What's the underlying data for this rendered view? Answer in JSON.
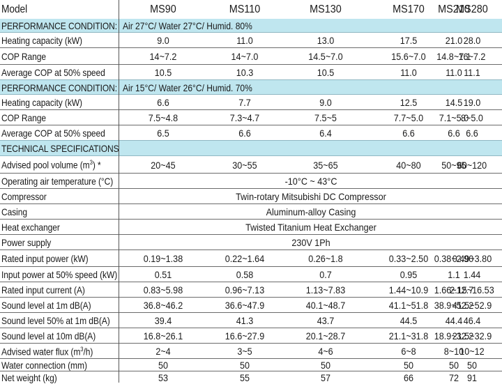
{
  "columns": [
    "MS90",
    "MS110",
    "MS130",
    "MS170",
    "MS210",
    "MS280"
  ],
  "header": {
    "label": "Model"
  },
  "condition1": {
    "label": "PERFORMANCE CONDITION:",
    "value": "Air 27°C/ Water 27°C/ Humid. 80%",
    "rows": [
      {
        "label": "Heating capacity (kW)",
        "values": [
          "9.0",
          "11.0",
          "13.0",
          "17.5",
          "21.0",
          "28.0"
        ]
      },
      {
        "label": "COP Range",
        "values": [
          "14~7.2",
          "14~7.0",
          "14.5~7.0",
          "15.6~7.0",
          "14.8~7.1",
          "16~7.2"
        ]
      },
      {
        "label": "Average COP at 50% speed",
        "values": [
          "10.5",
          "10.3",
          "10.5",
          "11.0",
          "11.0",
          "11.1"
        ]
      }
    ]
  },
  "condition2": {
    "label": "PERFORMANCE CONDITION:",
    "value": "Air 15°C/ Water 26°C/ Humid. 70%",
    "rows": [
      {
        "label": "Heating capacity (kW)",
        "values": [
          "6.6",
          "7.7",
          "9.0",
          "12.5",
          "14.5",
          "19.0"
        ]
      },
      {
        "label": "COP Range",
        "values": [
          "7.5~4.8",
          "7.3~4.7",
          "7.5~5",
          "7.7~5.0",
          "7.1~5.0",
          "8~5.0"
        ]
      },
      {
        "label": "Average COP at 50% speed",
        "values": [
          "6.5",
          "6.6",
          "6.4",
          "6.6",
          "6.6",
          "6.6"
        ]
      }
    ]
  },
  "technical": {
    "label": "TECHNICAL SPECIFICATIONS",
    "pool_volume": {
      "label_prefix": "Advised pool volume (m",
      "label_sup": "3",
      "label_suffix": ") *",
      "values": [
        "20~45",
        "30~55",
        "35~65",
        "40~80",
        "50~95",
        "60~120"
      ]
    },
    "operating_temp": {
      "label": "Operating air temperature (°C)",
      "value": "-10°C ~ 43°C"
    },
    "compressor": {
      "label": "Compressor",
      "value": "Twin-rotary Mitsubishi DC Compressor"
    },
    "casing": {
      "label": "Casing",
      "value": "Aluminum-alloy Casing"
    },
    "heat_exchanger": {
      "label": "Heat exchanger",
      "value": "Twisted Titanium Heat Exchanger"
    },
    "power_supply": {
      "label": "Power supply",
      "value": "230V 1Ph"
    },
    "rows": [
      {
        "label": "Rated input power (kW)",
        "values": [
          "0.19~1.38",
          "0.22~1.64",
          "0.26~1.8",
          "0.33~2.50",
          "0.38~2.90",
          "0.49~3.80"
        ]
      },
      {
        "label": "Input power at 50% speed (kW)",
        "values": [
          "0.51",
          "0.58",
          "0.7",
          "0.95",
          "1.1",
          "1.44"
        ]
      },
      {
        "label": "Rated input current (A)",
        "values": [
          "0.83~5.98",
          "0.96~7.13",
          "1.13~7.83",
          "1.44~10.9",
          "1.66~12.7",
          "2.15~16.53"
        ]
      },
      {
        "label": "Sound level  at 1m dB(A)",
        "values": [
          "36.8~46.2",
          "36.6~47.9",
          "40.1~48.7",
          "41.1~51.8",
          "38.9~52.2",
          "41.5~52.9"
        ]
      },
      {
        "label": "Sound level  50% at 1m dB(A)",
        "values": [
          "39.4",
          "41.3",
          "43.7",
          "44.5",
          "44.4",
          "46.4"
        ]
      },
      {
        "label": "Sound level  at 10m dB(A)",
        "values": [
          "16.8~26.1",
          "16.6~27.9",
          "20.1~28.7",
          "21.1~31.8",
          "18.9~32.2",
          "21.5~32.9"
        ]
      }
    ],
    "water_flux": {
      "label_prefix": "Advised water flux (m",
      "label_sup": "3",
      "label_suffix": "/h)",
      "values": [
        "2~4",
        "3~5",
        "4~6",
        "6~8",
        "8~10",
        "10~12"
      ]
    },
    "water_connection": {
      "label": "Water connection (mm)",
      "values": [
        "50",
        "50",
        "50",
        "50",
        "50",
        "50"
      ]
    },
    "net_weight": {
      "label": "Net weight (kg)",
      "values": [
        "53",
        "55",
        "57",
        "66",
        "72",
        "91"
      ]
    }
  }
}
